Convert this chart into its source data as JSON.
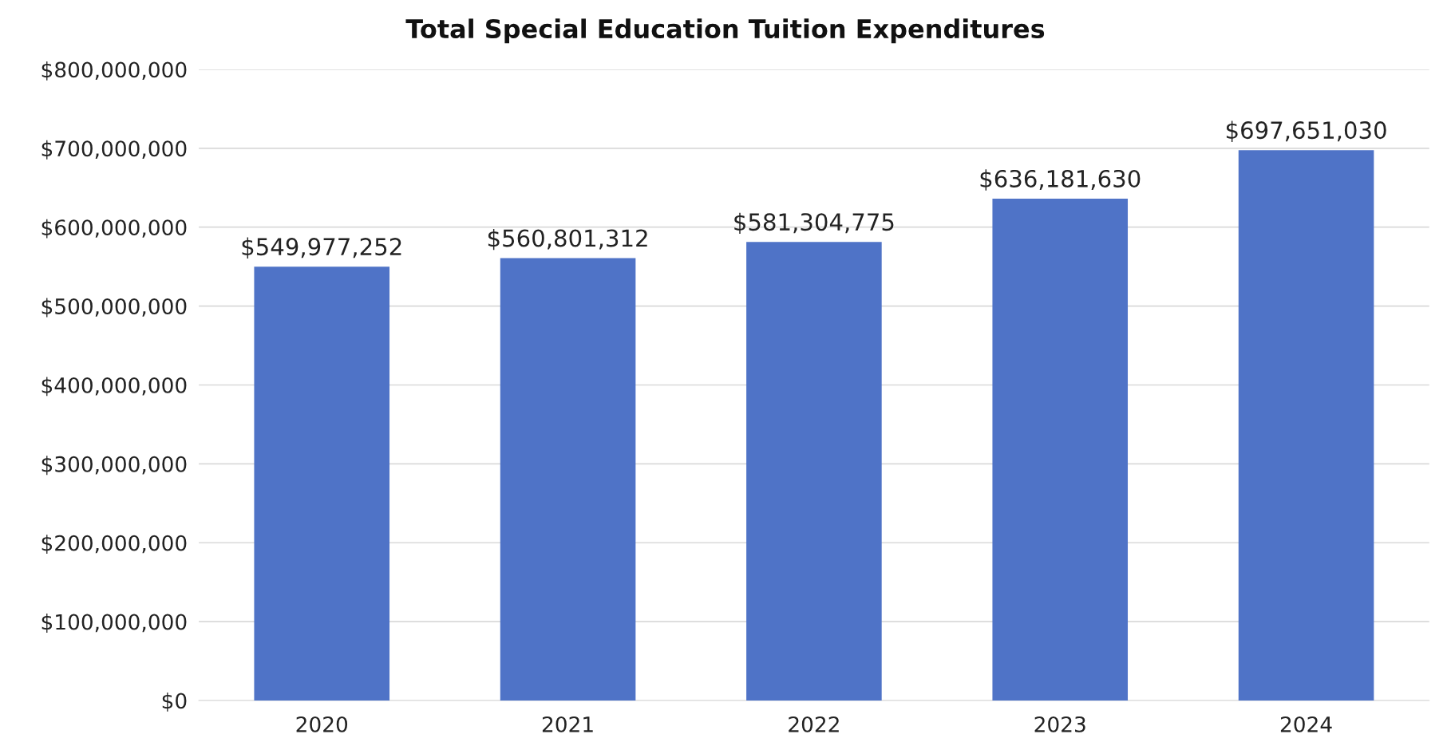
{
  "chart_data": {
    "type": "bar",
    "title": "Total Special Education Tuition Expenditures",
    "categories": [
      "2020",
      "2021",
      "2022",
      "2023",
      "2024"
    ],
    "values": [
      549977252,
      560801312,
      581304775,
      636181630,
      697651030
    ],
    "value_labels": [
      "$549,977,252",
      "$560,801,312",
      "$581,304,775",
      "$636,181,630",
      "$697,651,030"
    ],
    "color": "#4f73c7",
    "ylim": [
      0,
      800000000
    ],
    "yticks": [
      {
        "value": 0,
        "label": "$0"
      },
      {
        "value": 100000000,
        "label": "$100,000,000"
      },
      {
        "value": 200000000,
        "label": "$200,000,000"
      },
      {
        "value": 300000000,
        "label": "$300,000,000"
      },
      {
        "value": 400000000,
        "label": "$400,000,000"
      },
      {
        "value": 500000000,
        "label": "$500,000,000"
      },
      {
        "value": 600000000,
        "label": "$600,000,000"
      },
      {
        "value": 700000000,
        "label": "$700,000,000"
      },
      {
        "value": 800000000,
        "label": "$800,000,000"
      }
    ],
    "grid": "y"
  }
}
